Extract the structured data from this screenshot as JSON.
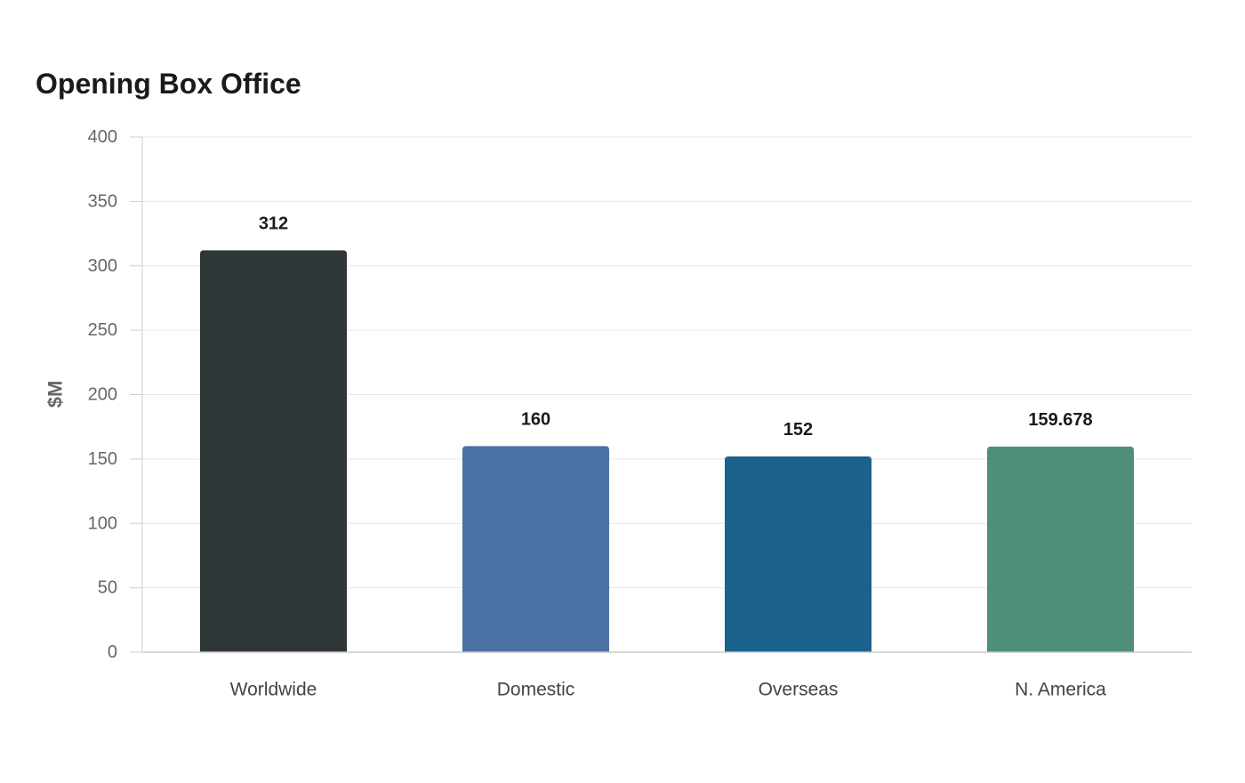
{
  "chart_data": {
    "type": "bar",
    "title": "Opening Box Office",
    "xlabel": "",
    "ylabel": "$M",
    "ylim": [
      0,
      400
    ],
    "yticks": [
      0,
      50,
      100,
      150,
      200,
      250,
      300,
      350,
      400
    ],
    "categories": [
      "Worldwide",
      "Domestic",
      "Overseas",
      "N. America"
    ],
    "values": [
      312,
      160,
      152,
      159.678
    ],
    "data_labels": [
      "312",
      "160",
      "152",
      "159.678"
    ],
    "colors": [
      "#2e3638",
      "#4b70a4",
      "#1a628b",
      "#4f8e7b"
    ],
    "grid": true,
    "legend": "none"
  }
}
